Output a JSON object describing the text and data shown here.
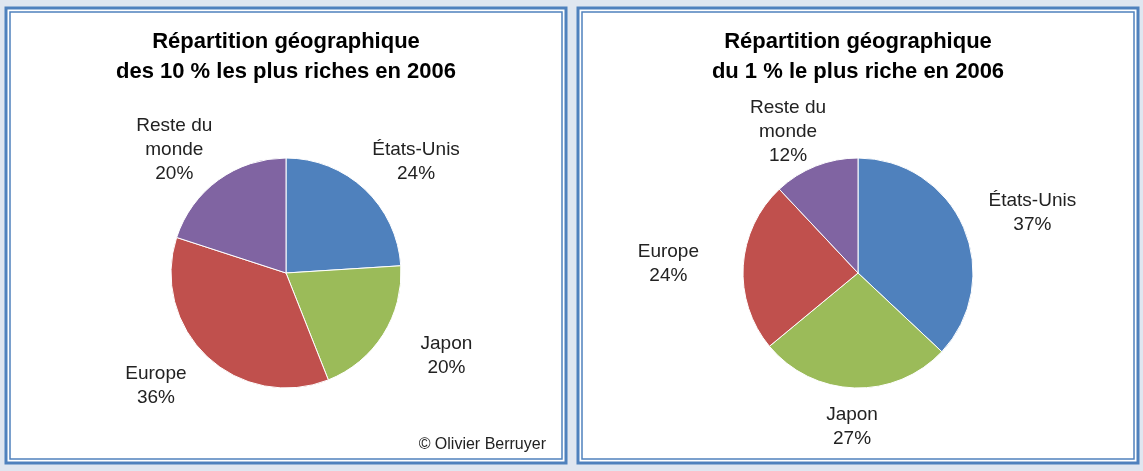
{
  "chart_data": [
    {
      "type": "pie",
      "title": "Répartition géographique\ndes 10 % les plus riches en 2006",
      "categories": [
        "États-Unis",
        "Japon",
        "Europe",
        "Reste du monde"
      ],
      "values": [
        24,
        20,
        36,
        20
      ],
      "value_labels": [
        "24%",
        "20%",
        "36%",
        "20%"
      ],
      "colors": [
        "#4f81bd",
        "#9bbb59",
        "#c0504d",
        "#8064a2"
      ],
      "annotations": [
        "© Olivier Berruyer"
      ]
    },
    {
      "type": "pie",
      "title": "Répartition géographique\ndu 1 % le plus riche en 2006",
      "categories": [
        "États-Unis",
        "Japon",
        "Europe",
        "Reste du monde"
      ],
      "values": [
        37,
        27,
        24,
        12
      ],
      "value_labels": [
        "37%",
        "27%",
        "24%",
        "12%"
      ],
      "colors": [
        "#4f81bd",
        "#9bbb59",
        "#c0504d",
        "#8064a2"
      ]
    }
  ]
}
